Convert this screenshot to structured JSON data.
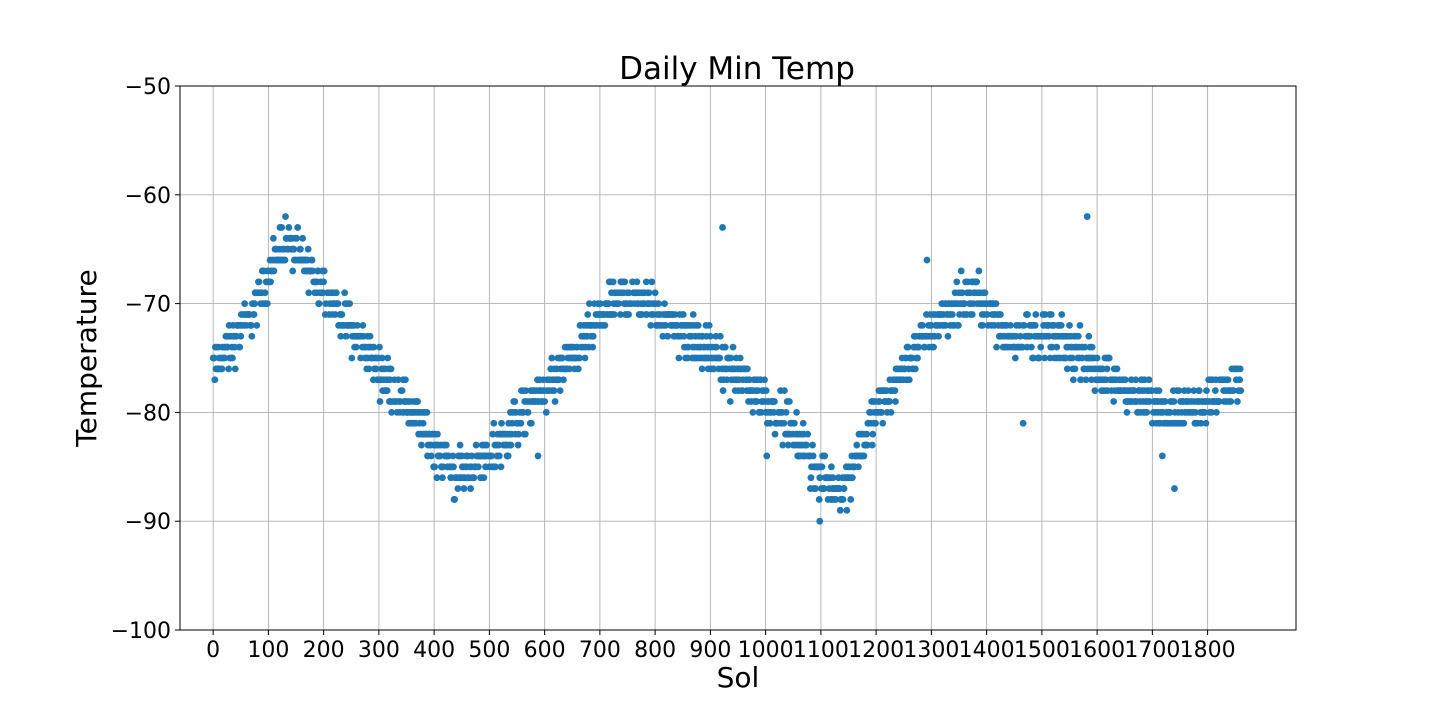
{
  "chart_data": {
    "type": "scatter",
    "title": "Daily Min Temp",
    "xlabel": "Sol",
    "ylabel": "Temperature",
    "xlim": [
      -60,
      1960
    ],
    "ylim": [
      -100,
      -50
    ],
    "xticks": [
      0,
      100,
      200,
      300,
      400,
      500,
      600,
      700,
      800,
      900,
      1000,
      1100,
      1200,
      1300,
      1400,
      1500,
      1600,
      1700,
      1800
    ],
    "yticks": [
      -100,
      -90,
      -80,
      -70,
      -60,
      -50
    ],
    "xtick_labels": [
      "0",
      "100",
      "200",
      "300",
      "400",
      "500",
      "600",
      "700",
      "800",
      "900",
      "1000",
      "1100",
      "1200",
      "1300",
      "1400",
      "1500",
      "1600",
      "1700",
      "1800"
    ],
    "ytick_labels": [
      "−100",
      "−90",
      "−80",
      "−70",
      "−60",
      "−50"
    ],
    "grid": true,
    "marker_color": "#1f77b4",
    "x_range_of_points": [
      0,
      1860
    ],
    "trend_key_points": [
      {
        "sol": 0,
        "temp": -76
      },
      {
        "sol": 60,
        "temp": -72
      },
      {
        "sol": 130,
        "temp": -64
      },
      {
        "sol": 160,
        "temp": -66
      },
      {
        "sol": 220,
        "temp": -70
      },
      {
        "sol": 300,
        "temp": -76
      },
      {
        "sol": 360,
        "temp": -80
      },
      {
        "sol": 440,
        "temp": -86
      },
      {
        "sol": 500,
        "temp": -84
      },
      {
        "sol": 580,
        "temp": -79
      },
      {
        "sol": 650,
        "temp": -75
      },
      {
        "sol": 720,
        "temp": -70
      },
      {
        "sol": 760,
        "temp": -69
      },
      {
        "sol": 860,
        "temp": -73
      },
      {
        "sol": 960,
        "temp": -77
      },
      {
        "sol": 1040,
        "temp": -81
      },
      {
        "sol": 1100,
        "temp": -86
      },
      {
        "sol": 1140,
        "temp": -87
      },
      {
        "sol": 1200,
        "temp": -80
      },
      {
        "sol": 1260,
        "temp": -75
      },
      {
        "sol": 1320,
        "temp": -71
      },
      {
        "sol": 1380,
        "temp": -69
      },
      {
        "sol": 1440,
        "temp": -73
      },
      {
        "sol": 1520,
        "temp": -73
      },
      {
        "sol": 1600,
        "temp": -76
      },
      {
        "sol": 1680,
        "temp": -79
      },
      {
        "sol": 1760,
        "temp": -80
      },
      {
        "sol": 1860,
        "temp": -77
      }
    ],
    "outliers": [
      {
        "sol": 922,
        "temp": -63
      },
      {
        "sol": 1582,
        "temp": -62
      },
      {
        "sol": 1292,
        "temp": -66
      },
      {
        "sol": 1740,
        "temp": -87
      },
      {
        "sol": 1098,
        "temp": -90
      },
      {
        "sol": 1718,
        "temp": -84
      },
      {
        "sol": 1466,
        "temp": -81
      },
      {
        "sol": 588,
        "temp": -84
      },
      {
        "sol": 1002,
        "temp": -84
      }
    ]
  }
}
